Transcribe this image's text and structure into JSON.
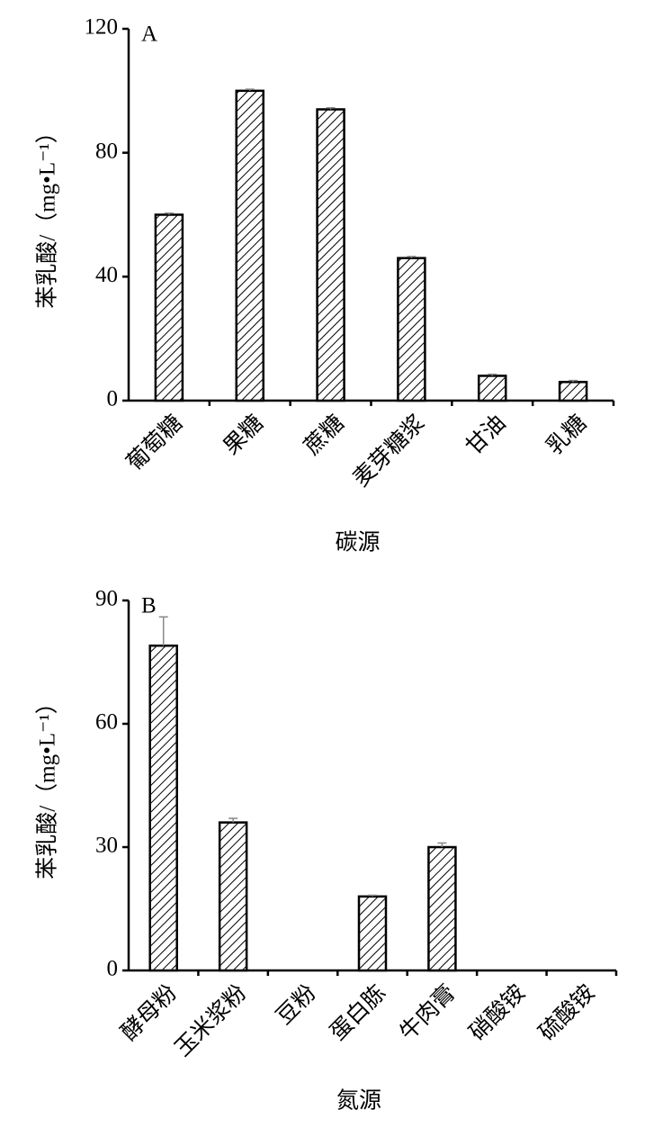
{
  "chart_data": [
    {
      "type": "bar",
      "panel_label": "A",
      "y_label": "苯乳酸/（mg•L⁻¹）",
      "x_label": "碳源",
      "categories": [
        "葡萄糖",
        "果糖",
        "蔗糖",
        "麦芽糖浆",
        "甘油",
        "乳糖"
      ],
      "values": [
        60,
        100,
        94,
        46,
        8,
        6
      ],
      "errors": [
        0.5,
        0.5,
        0.5,
        0.5,
        0.5,
        0.5
      ],
      "color": "#000000",
      "hatch": true,
      "ylim": [
        0,
        120
      ],
      "yticks": [
        0,
        40,
        80,
        120
      ]
    },
    {
      "type": "bar",
      "panel_label": "B",
      "y_label": "苯乳酸/（mg•L⁻¹）",
      "x_label": "氮源",
      "categories": [
        "酵母粉",
        "玉米浆粉",
        "豆粉",
        "蛋白胨",
        "牛肉膏",
        "硝酸铵",
        "硫酸铵"
      ],
      "values": [
        79,
        36,
        0,
        18,
        30,
        0,
        0
      ],
      "errors": [
        7,
        1,
        0,
        0.3,
        1,
        0,
        0
      ],
      "color": "#000000",
      "hatch": true,
      "ylim": [
        0,
        90
      ],
      "yticks": [
        0,
        30,
        60,
        90
      ]
    }
  ]
}
